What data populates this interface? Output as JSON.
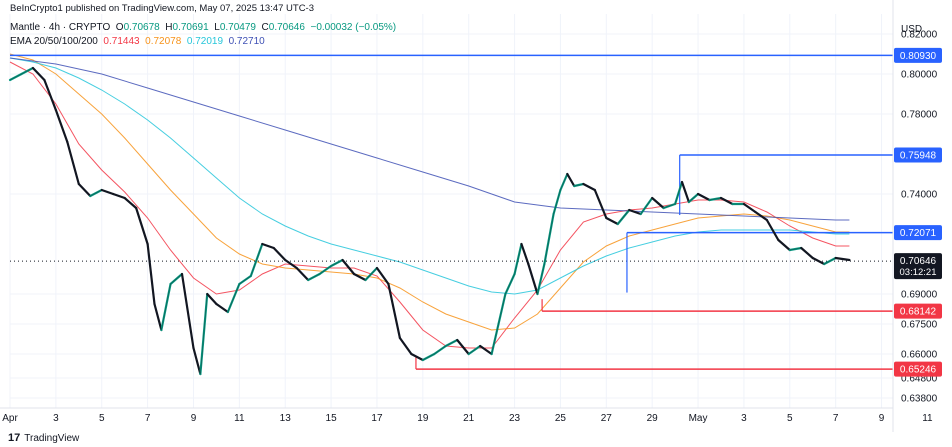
{
  "header": {
    "published": "BeInCrypto1 published on TradingView.com, May 07, 2025 13:47 UTC-3",
    "symbol": "Mantle · 4h · CRYPTO",
    "o_label": "O",
    "o": "0.70678",
    "h_label": "H",
    "h": "0.70691",
    "l_label": "L",
    "l": "0.70479",
    "c_label": "C",
    "c": "0.70646",
    "change": "−0.00032 (−0.05%)",
    "ema_label": "EMA 20/50/100/200",
    "ema": [
      "0.71443",
      "0.72078",
      "0.72019",
      "0.72710"
    ]
  },
  "currency": "USD",
  "logo_text": "TradingView",
  "logo_mark": "17",
  "colors": {
    "up": "#089981",
    "down": "#131722",
    "ema20": "#f23645",
    "ema50": "#f7931a",
    "ema100": "#26c6da",
    "ema200": "#3f51b5",
    "resistance": "#2962ff",
    "support": "#f23645"
  },
  "chart_data": {
    "type": "line",
    "title": "Mantle · 4h · CRYPTO",
    "ylim": [
      0.633,
      0.83
    ],
    "xlim": [
      0,
      38.5
    ],
    "y_ticks": [
      "0.82000",
      "0.80000",
      "0.78000",
      "0.74000",
      "0.69000",
      "0.67500",
      "0.66000",
      "0.64800",
      "0.63800"
    ],
    "y_tick_values": [
      0.82,
      0.8,
      0.78,
      0.74,
      0.69,
      0.675,
      0.66,
      0.648,
      0.638
    ],
    "x_ticks": [
      "Apr",
      "3",
      "5",
      "7",
      "9",
      "11",
      "13",
      "15",
      "17",
      "19",
      "21",
      "23",
      "25",
      "27",
      "29",
      "May",
      "3",
      "5",
      "7",
      "9",
      "11"
    ],
    "x_tick_positions": [
      0,
      2,
      4,
      6,
      8,
      10,
      12,
      14,
      16,
      18,
      20,
      22,
      24,
      26,
      28,
      30,
      32,
      34,
      36,
      38,
      40
    ],
    "last_price": {
      "label": "0.70646",
      "value": 0.70646,
      "countdown": "03:12:21"
    },
    "levels": [
      {
        "label": "0.80930",
        "value": 0.8093,
        "kind": "resistance",
        "x_start": 0
      },
      {
        "label": "0.75948",
        "value": 0.75948,
        "kind": "resistance",
        "x_start": 29.2
      },
      {
        "label": "0.72071",
        "value": 0.72071,
        "kind": "resistance",
        "x_start": 26.9
      },
      {
        "label": "0.68142",
        "value": 0.68142,
        "kind": "support",
        "x_start": 23.2
      },
      {
        "label": "0.65246",
        "value": 0.65246,
        "kind": "support",
        "x_start": 17.7
      }
    ],
    "price_path": [
      [
        0,
        0.797
      ],
      [
        0.5,
        0.8
      ],
      [
        1,
        0.803
      ],
      [
        1.5,
        0.797
      ],
      [
        2,
        0.782
      ],
      [
        2.5,
        0.766
      ],
      [
        3,
        0.745
      ],
      [
        3.5,
        0.739
      ],
      [
        4,
        0.742
      ],
      [
        4.5,
        0.74
      ],
      [
        5,
        0.738
      ],
      [
        5.5,
        0.733
      ],
      [
        6,
        0.715
      ],
      [
        6.3,
        0.685
      ],
      [
        6.6,
        0.672
      ],
      [
        7,
        0.695
      ],
      [
        7.5,
        0.7
      ],
      [
        8,
        0.663
      ],
      [
        8.3,
        0.65
      ],
      [
        8.6,
        0.69
      ],
      [
        9,
        0.685
      ],
      [
        9.5,
        0.681
      ],
      [
        10,
        0.695
      ],
      [
        10.5,
        0.699
      ],
      [
        11,
        0.715
      ],
      [
        11.5,
        0.713
      ],
      [
        12,
        0.707
      ],
      [
        12.5,
        0.703
      ],
      [
        13,
        0.697
      ],
      [
        13.5,
        0.7
      ],
      [
        14,
        0.704
      ],
      [
        14.5,
        0.707
      ],
      [
        15,
        0.7
      ],
      [
        15.5,
        0.697
      ],
      [
        16,
        0.703
      ],
      [
        16.5,
        0.695
      ],
      [
        17,
        0.668
      ],
      [
        17.5,
        0.66
      ],
      [
        18,
        0.657
      ],
      [
        18.5,
        0.66
      ],
      [
        19,
        0.664
      ],
      [
        19.5,
        0.667
      ],
      [
        20,
        0.66
      ],
      [
        20.5,
        0.664
      ],
      [
        21,
        0.66
      ],
      [
        21.3,
        0.675
      ],
      [
        21.6,
        0.69
      ],
      [
        22,
        0.7
      ],
      [
        22.3,
        0.715
      ],
      [
        22.6,
        0.705
      ],
      [
        23,
        0.69
      ],
      [
        23.3,
        0.705
      ],
      [
        23.7,
        0.73
      ],
      [
        24,
        0.742
      ],
      [
        24.3,
        0.75
      ],
      [
        24.6,
        0.744
      ],
      [
        25,
        0.745
      ],
      [
        25.5,
        0.742
      ],
      [
        26,
        0.728
      ],
      [
        26.5,
        0.725
      ],
      [
        27,
        0.732
      ],
      [
        27.5,
        0.73
      ],
      [
        28,
        0.738
      ],
      [
        28.5,
        0.733
      ],
      [
        29,
        0.735
      ],
      [
        29.3,
        0.746
      ],
      [
        29.6,
        0.736
      ],
      [
        30,
        0.74
      ],
      [
        30.5,
        0.737
      ],
      [
        31,
        0.738
      ],
      [
        31.5,
        0.735
      ],
      [
        32,
        0.735
      ],
      [
        32.5,
        0.731
      ],
      [
        33,
        0.727
      ],
      [
        33.5,
        0.717
      ],
      [
        34,
        0.712
      ],
      [
        34.5,
        0.713
      ],
      [
        35,
        0.708
      ],
      [
        35.5,
        0.705
      ],
      [
        36,
        0.708
      ],
      [
        36.6,
        0.707
      ]
    ],
    "series": [
      {
        "name": "EMA 20",
        "points": [
          [
            0,
            0.806
          ],
          [
            1,
            0.8
          ],
          [
            2,
            0.785
          ],
          [
            3,
            0.765
          ],
          [
            4,
            0.752
          ],
          [
            5,
            0.741
          ],
          [
            6,
            0.728
          ],
          [
            7,
            0.712
          ],
          [
            8,
            0.698
          ],
          [
            9,
            0.69
          ],
          [
            10,
            0.692
          ],
          [
            11,
            0.7
          ],
          [
            12,
            0.705
          ],
          [
            13,
            0.704
          ],
          [
            14,
            0.703
          ],
          [
            15,
            0.703
          ],
          [
            16,
            0.699
          ],
          [
            17,
            0.686
          ],
          [
            18,
            0.672
          ],
          [
            19,
            0.664
          ],
          [
            20,
            0.663
          ],
          [
            21,
            0.663
          ],
          [
            22,
            0.678
          ],
          [
            23,
            0.692
          ],
          [
            24,
            0.712
          ],
          [
            25,
            0.726
          ],
          [
            26,
            0.73
          ],
          [
            27,
            0.732
          ],
          [
            28,
            0.733
          ],
          [
            29,
            0.735
          ],
          [
            30,
            0.737
          ],
          [
            31,
            0.737
          ],
          [
            32,
            0.736
          ],
          [
            33,
            0.731
          ],
          [
            34,
            0.724
          ],
          [
            35,
            0.718
          ],
          [
            36,
            0.714
          ],
          [
            36.6,
            0.714
          ]
        ]
      },
      {
        "name": "EMA 50",
        "points": [
          [
            0,
            0.81
          ],
          [
            1,
            0.807
          ],
          [
            2,
            0.8
          ],
          [
            3,
            0.79
          ],
          [
            4,
            0.78
          ],
          [
            5,
            0.768
          ],
          [
            6,
            0.755
          ],
          [
            7,
            0.742
          ],
          [
            8,
            0.73
          ],
          [
            9,
            0.718
          ],
          [
            10,
            0.71
          ],
          [
            11,
            0.705
          ],
          [
            12,
            0.703
          ],
          [
            13,
            0.702
          ],
          [
            14,
            0.701
          ],
          [
            15,
            0.7
          ],
          [
            16,
            0.698
          ],
          [
            17,
            0.693
          ],
          [
            18,
            0.686
          ],
          [
            19,
            0.68
          ],
          [
            20,
            0.676
          ],
          [
            21,
            0.672
          ],
          [
            22,
            0.673
          ],
          [
            23,
            0.68
          ],
          [
            24,
            0.693
          ],
          [
            25,
            0.706
          ],
          [
            26,
            0.714
          ],
          [
            27,
            0.719
          ],
          [
            28,
            0.722
          ],
          [
            29,
            0.725
          ],
          [
            30,
            0.728
          ],
          [
            31,
            0.729
          ],
          [
            32,
            0.73
          ],
          [
            33,
            0.729
          ],
          [
            34,
            0.727
          ],
          [
            35,
            0.724
          ],
          [
            36,
            0.721
          ],
          [
            36.6,
            0.721
          ]
        ]
      },
      {
        "name": "EMA 100",
        "points": [
          [
            0,
            0.808
          ],
          [
            1,
            0.806
          ],
          [
            2,
            0.803
          ],
          [
            3,
            0.798
          ],
          [
            4,
            0.792
          ],
          [
            5,
            0.785
          ],
          [
            6,
            0.777
          ],
          [
            7,
            0.768
          ],
          [
            8,
            0.758
          ],
          [
            9,
            0.748
          ],
          [
            10,
            0.738
          ],
          [
            11,
            0.73
          ],
          [
            12,
            0.724
          ],
          [
            13,
            0.719
          ],
          [
            14,
            0.715
          ],
          [
            15,
            0.712
          ],
          [
            16,
            0.709
          ],
          [
            17,
            0.706
          ],
          [
            18,
            0.702
          ],
          [
            19,
            0.698
          ],
          [
            20,
            0.694
          ],
          [
            21,
            0.691
          ],
          [
            22,
            0.69
          ],
          [
            23,
            0.692
          ],
          [
            24,
            0.698
          ],
          [
            25,
            0.704
          ],
          [
            26,
            0.709
          ],
          [
            27,
            0.713
          ],
          [
            28,
            0.716
          ],
          [
            29,
            0.719
          ],
          [
            30,
            0.721
          ],
          [
            31,
            0.722
          ],
          [
            32,
            0.722
          ],
          [
            33,
            0.722
          ],
          [
            34,
            0.722
          ],
          [
            35,
            0.721
          ],
          [
            36,
            0.72
          ],
          [
            36.6,
            0.72
          ]
        ]
      },
      {
        "name": "EMA 200",
        "points": [
          [
            0,
            0.808
          ],
          [
            2,
            0.805
          ],
          [
            4,
            0.8
          ],
          [
            6,
            0.793
          ],
          [
            8,
            0.786
          ],
          [
            10,
            0.779
          ],
          [
            12,
            0.772
          ],
          [
            14,
            0.765
          ],
          [
            16,
            0.758
          ],
          [
            18,
            0.751
          ],
          [
            20,
            0.744
          ],
          [
            22,
            0.736
          ],
          [
            24,
            0.733
          ],
          [
            26,
            0.732
          ],
          [
            28,
            0.731
          ],
          [
            30,
            0.73
          ],
          [
            32,
            0.729
          ],
          [
            34,
            0.728
          ],
          [
            36,
            0.727
          ],
          [
            36.6,
            0.727
          ]
        ]
      }
    ]
  }
}
